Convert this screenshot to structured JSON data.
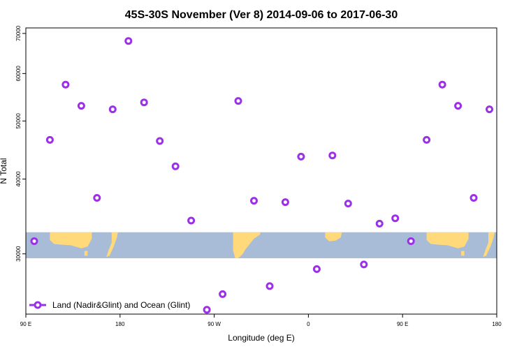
{
  "chart_data": {
    "type": "scatter",
    "title": "45S-30S November (Ver 8)   2014-09-06 to 2017-06-30",
    "xlabel": "Longitude (deg E)",
    "ylabel": "N Total",
    "x_axis": {
      "range": [
        90,
        450
      ],
      "ticks": [
        {
          "value": 90,
          "label": "90 E"
        },
        {
          "value": 180,
          "label": "180"
        },
        {
          "value": 270,
          "label": "90 W"
        },
        {
          "value": 360,
          "label": "0"
        },
        {
          "value": 450,
          "label": "90 E"
        },
        {
          "value": 540,
          "label": "180"
        }
      ],
      "lim": [
        90,
        540
      ]
    },
    "y_axis": {
      "scale": "log",
      "lim": [
        23800,
        71500
      ],
      "ticks": [
        30000,
        40000,
        50000,
        60000,
        70000
      ]
    },
    "map_band": {
      "y_from": 29500,
      "y_to": 32600,
      "ocean_color": "#a8bcd8",
      "land_color": "#ffd97a"
    },
    "series": [
      {
        "name": "Land (Nadir&Glint) and Ocean (Glint)",
        "color": "#9b30e8",
        "x": [
          98,
          113,
          128,
          143,
          158,
          173,
          188,
          203,
          218,
          233,
          248,
          263,
          278,
          293,
          308,
          323,
          338,
          353,
          368,
          383,
          398,
          413,
          428,
          443,
          458,
          473,
          488,
          503,
          518,
          533
        ],
        "y": [
          31500,
          46500,
          57500,
          53000,
          37200,
          52300,
          68000,
          53700,
          46300,
          42000,
          34100,
          24200,
          25700,
          54000,
          36800,
          26500,
          36600,
          43600,
          28300,
          43800,
          36400,
          28800,
          33700,
          34400,
          31500,
          46500,
          57500,
          53000,
          37200,
          52300
        ]
      }
    ],
    "legend": {
      "placement": "bottom-left"
    },
    "grid": false
  }
}
